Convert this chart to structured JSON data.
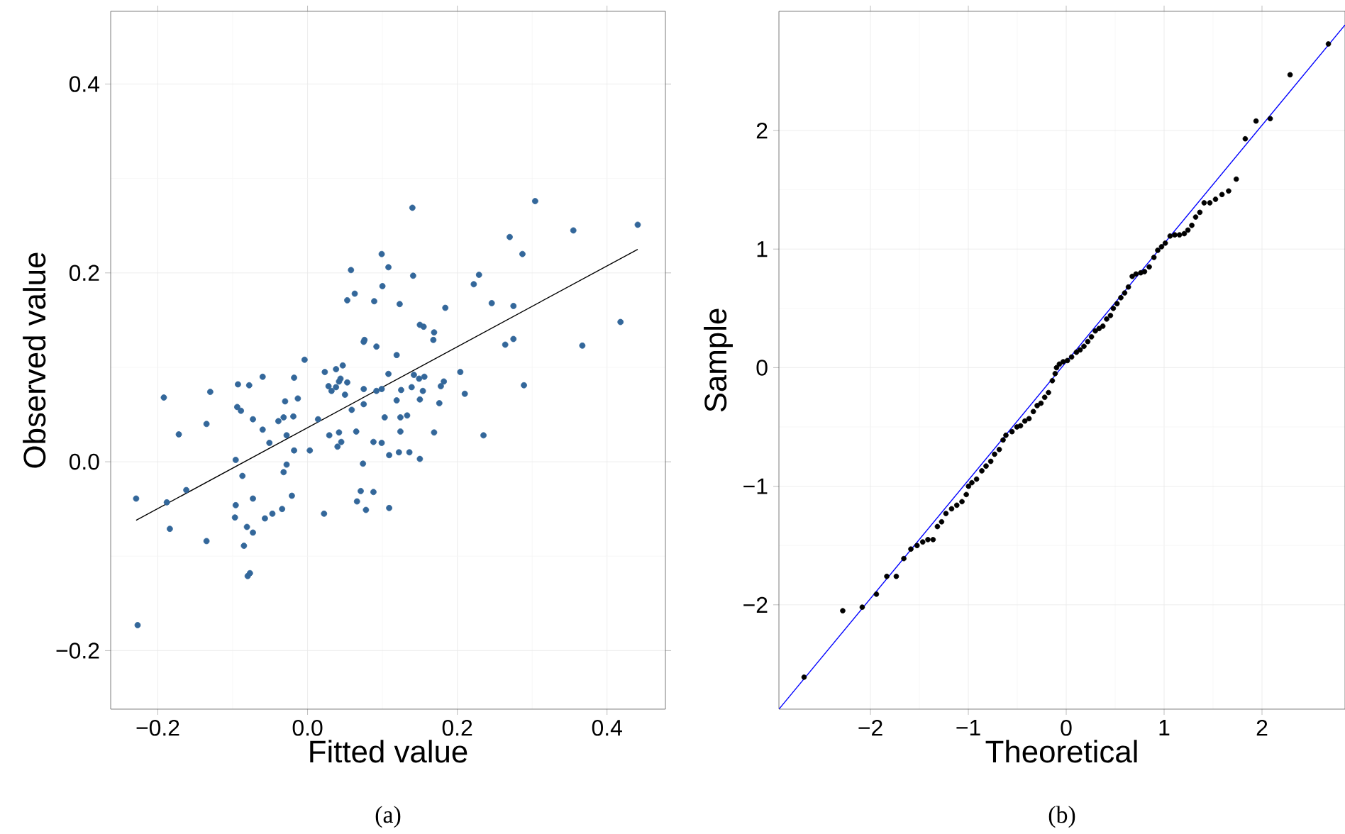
{
  "chart_data": [
    {
      "type": "scatter",
      "xlabel": "Fitted value",
      "ylabel": "Observed value",
      "annotations": [
        "(a)"
      ],
      "grid": true,
      "xlim": [
        -0.263,
        0.478
      ],
      "ylim": [
        -0.262,
        0.477
      ],
      "xticks": [
        {
          "value": -0.2,
          "label": "−0.2"
        },
        {
          "value": 0,
          "label": "0.0"
        },
        {
          "value": 0.2,
          "label": "0.2"
        },
        {
          "value": 0.4,
          "label": "0.4"
        }
      ],
      "yticks": [
        {
          "value": -0.2,
          "label": "−0.2"
        },
        {
          "value": 0,
          "label": "0.0"
        },
        {
          "value": 0.2,
          "label": "0.2"
        },
        {
          "value": 0.4,
          "label": "0.4"
        }
      ],
      "series": [
        {
          "color": "#33679a",
          "x": [
            -0.229,
            -0.227,
            -0.192,
            -0.188,
            -0.184,
            -0.172,
            -0.162,
            -0.135,
            -0.135,
            -0.13,
            -0.096,
            -0.096,
            -0.097,
            -0.094,
            -0.093,
            -0.089,
            -0.087,
            -0.085,
            -0.081,
            -0.08,
            -0.077,
            -0.078,
            -0.073,
            -0.073,
            -0.073,
            -0.06,
            -0.06,
            -0.057,
            -0.051,
            -0.047,
            -0.039,
            -0.034,
            -0.032,
            -0.032,
            -0.03,
            -0.028,
            -0.028,
            -0.021,
            -0.019,
            -0.018,
            -0.018,
            -0.013,
            -0.004,
            0.003,
            0.014,
            0.022,
            0.023,
            0.028,
            0.029,
            0.032,
            0.038,
            0.038,
            0.04,
            0.042,
            0.042,
            0.044,
            0.045,
            0.047,
            0.05,
            0.053,
            0.053,
            0.058,
            0.059,
            0.063,
            0.065,
            0.066,
            0.071,
            0.074,
            0.075,
            0.076,
            0.075,
            0.075,
            0.078,
            0.088,
            0.088,
            0.089,
            0.092,
            0.099,
            0.1,
            0.099,
            0.092,
            0.099,
            0.103,
            0.108,
            0.108,
            0.109,
            0.109,
            0.14,
            0.141,
            0.123,
            0.119,
            0.15,
            0.155,
            0.169,
            0.168,
            0.184,
            0.142,
            0.149,
            0.156,
            0.139,
            0.125,
            0.154,
            0.182,
            0.178,
            0.119,
            0.15,
            0.176,
            0.133,
            0.124,
            0.124,
            0.169,
            0.122,
            0.136,
            0.15,
            0.204,
            0.21,
            0.235,
            0.222,
            0.229,
            0.246,
            0.275,
            0.264,
            0.275,
            0.27,
            0.287,
            0.304,
            0.289,
            0.355,
            0.367,
            0.418,
            0.441
          ],
          "values": [
            -0.039,
            -0.173,
            0.068,
            -0.043,
            -0.071,
            0.029,
            -0.03,
            0.04,
            -0.084,
            0.074,
            0.002,
            -0.046,
            -0.059,
            0.058,
            0.082,
            0.054,
            -0.015,
            -0.089,
            -0.069,
            -0.121,
            -0.118,
            0.081,
            0.045,
            -0.075,
            -0.039,
            0.09,
            0.034,
            -0.06,
            0.02,
            -0.055,
            0.043,
            -0.05,
            0.047,
            -0.011,
            0.064,
            -0.003,
            0.028,
            -0.036,
            0.048,
            0.089,
            0.012,
            0.067,
            0.108,
            0.012,
            0.045,
            -0.055,
            0.095,
            0.08,
            0.028,
            0.075,
            0.098,
            0.079,
            0.016,
            0.085,
            0.031,
            0.088,
            0.021,
            0.102,
            0.071,
            0.171,
            0.084,
            0.203,
            0.055,
            0.178,
            0.032,
            -0.042,
            -0.031,
            -0.002,
            0.127,
            0.129,
            0.077,
            0.061,
            -0.051,
            0.021,
            -0.032,
            0.17,
            0.122,
            0.22,
            0.186,
            0.02,
            0.075,
            0.077,
            0.047,
            0.206,
            0.093,
            0.007,
            -0.049,
            0.269,
            0.197,
            0.167,
            0.113,
            0.145,
            0.143,
            0.137,
            0.129,
            0.163,
            0.092,
            0.088,
            0.09,
            0.079,
            0.076,
            0.075,
            0.085,
            0.08,
            0.065,
            0.066,
            0.062,
            0.049,
            0.047,
            0.032,
            0.031,
            0.01,
            0.01,
            0.003,
            0.095,
            0.072,
            0.028,
            0.188,
            0.198,
            0.168,
            0.165,
            0.124,
            0.13,
            0.238,
            0.22,
            0.276,
            0.081,
            0.245,
            0.123,
            0.148,
            0.251
          ]
        },
        {
          "type": "line",
          "color": "#000000",
          "x": [
            -0.229,
            0.441
          ],
          "values": [
            -0.062,
            0.225
          ]
        }
      ]
    },
    {
      "type": "scatter",
      "xlabel": "Theoretical",
      "ylabel": "Sample",
      "annotations": [
        "(b)"
      ],
      "grid": true,
      "xlim": [
        -2.935,
        2.848
      ],
      "ylim": [
        -2.88,
        3.005
      ],
      "xticks": [
        {
          "value": -2,
          "label": "−2"
        },
        {
          "value": -1,
          "label": "−1"
        },
        0,
        1,
        2
      ],
      "yticks": [
        {
          "value": -2,
          "label": "−2"
        },
        {
          "value": -1,
          "label": "−1"
        },
        0,
        1,
        2
      ],
      "series": [
        {
          "color": "#000000",
          "x": [
            -2.678,
            -2.283,
            -2.084,
            -1.939,
            -1.833,
            -1.736,
            -1.659,
            -1.587,
            -1.524,
            -1.466,
            -1.413,
            -1.36,
            -1.316,
            -1.273,
            -1.229,
            -1.171,
            -1.118,
            -1.065,
            -1.021,
            -0.998,
            -0.964,
            -0.916,
            -0.862,
            -0.819,
            -0.771,
            -0.732,
            -0.684,
            -0.645,
            -0.616,
            -0.554,
            -0.504,
            -0.467,
            -0.423,
            -0.38,
            -0.336,
            -0.297,
            -0.258,
            -0.22,
            -0.181,
            -0.142,
            -0.113,
            -0.099,
            -0.07,
            -0.031,
            0.012,
            0.055,
            0.104,
            0.142,
            0.181,
            0.22,
            0.258,
            0.297,
            0.336,
            0.374,
            0.413,
            0.452,
            0.481,
            0.519,
            0.558,
            0.597,
            0.635,
            0.674,
            0.713,
            0.761,
            0.8,
            0.848,
            0.896,
            0.935,
            0.974,
            1.012,
            1.061,
            1.109,
            1.157,
            1.206,
            1.243,
            1.283,
            1.322,
            1.365,
            1.409,
            1.467,
            1.525,
            1.591,
            1.659,
            1.737,
            1.829,
            1.939,
            2.084,
            2.287,
            2.678
          ],
          "values": [
            -2.61,
            -2.05,
            -2.02,
            -1.91,
            -1.76,
            -1.76,
            -1.61,
            -1.53,
            -1.5,
            -1.47,
            -1.45,
            -1.45,
            -1.34,
            -1.3,
            -1.23,
            -1.19,
            -1.16,
            -1.13,
            -1.07,
            -1.0,
            -0.97,
            -0.94,
            -0.87,
            -0.83,
            -0.79,
            -0.73,
            -0.69,
            -0.61,
            -0.57,
            -0.54,
            -0.5,
            -0.49,
            -0.45,
            -0.43,
            -0.37,
            -0.32,
            -0.3,
            -0.25,
            -0.21,
            -0.11,
            -0.05,
            0.0,
            0.03,
            0.05,
            0.06,
            0.09,
            0.13,
            0.15,
            0.18,
            0.22,
            0.26,
            0.31,
            0.33,
            0.35,
            0.41,
            0.44,
            0.5,
            0.54,
            0.59,
            0.63,
            0.68,
            0.77,
            0.79,
            0.8,
            0.81,
            0.85,
            0.93,
            0.99,
            1.02,
            1.05,
            1.11,
            1.12,
            1.12,
            1.13,
            1.16,
            1.2,
            1.27,
            1.31,
            1.39,
            1.39,
            1.42,
            1.46,
            1.49,
            1.59,
            1.93,
            2.08,
            2.1,
            2.47,
            2.73
          ]
        },
        {
          "type": "line",
          "color": "#0000ff",
          "x": [
            -2.935,
            2.848
          ],
          "values": [
            -2.88,
            2.89
          ]
        }
      ]
    }
  ]
}
